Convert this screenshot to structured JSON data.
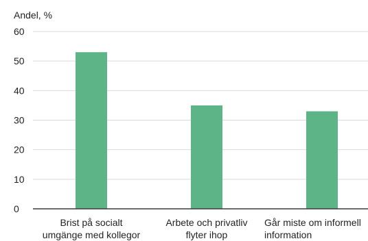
{
  "chart_data": {
    "type": "bar",
    "y_unit_label": "Andel, %",
    "categories": [
      [
        "Brist på socialt",
        "umgänge med kollegor"
      ],
      [
        "Arbete och privatliv",
        "flyter ihop"
      ],
      [
        "Går miste om informell",
        "information"
      ]
    ],
    "values": [
      53,
      35,
      33
    ],
    "ylim": [
      0,
      60
    ],
    "yticks": [
      0,
      10,
      20,
      30,
      40,
      50,
      60
    ],
    "grid": true,
    "legend": "none",
    "colors": {
      "bar": "#5cb487",
      "grid": "#d9d9d9",
      "axis": "#3a3a3a"
    }
  }
}
